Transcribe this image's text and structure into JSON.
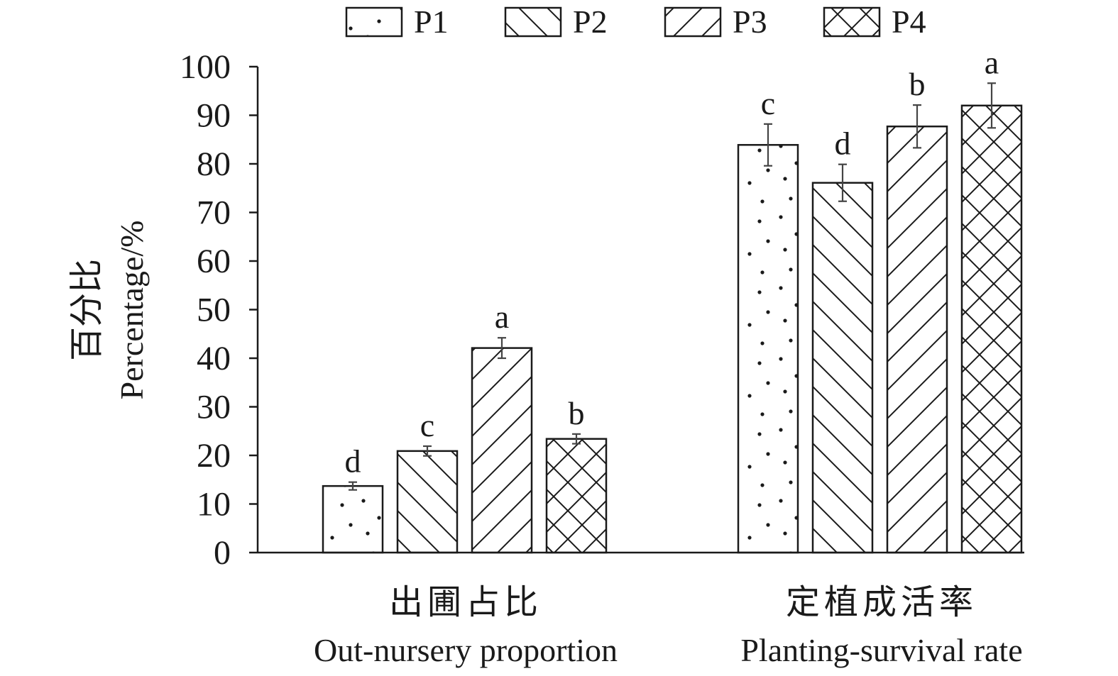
{
  "chart_data": {
    "type": "bar",
    "title": "",
    "ylabel_zh": "百分比",
    "ylabel": "Percentage/%",
    "ylim": [
      0,
      100
    ],
    "yticks": [
      0,
      10,
      20,
      30,
      40,
      50,
      60,
      70,
      80,
      90,
      100
    ],
    "grid": false,
    "legend_position": "top",
    "categories": [
      {
        "label_zh": "出圃占比",
        "label_en": "Out-nursery proportion"
      },
      {
        "label_zh": "定植成活率",
        "label_en": "Planting-survival rate"
      }
    ],
    "series": [
      {
        "name": "P1",
        "pattern": "dots",
        "values": [
          13.7,
          83.9
        ],
        "errors": [
          0.8,
          4.3
        ],
        "letters": [
          "d",
          "c"
        ]
      },
      {
        "name": "P2",
        "pattern": "backslash-hatch",
        "values": [
          20.9,
          76.1
        ],
        "errors": [
          1.0,
          3.8
        ],
        "letters": [
          "c",
          "d"
        ]
      },
      {
        "name": "P3",
        "pattern": "slash-hatch",
        "values": [
          42.1,
          87.7
        ],
        "errors": [
          2.1,
          4.4
        ],
        "letters": [
          "a",
          "b"
        ]
      },
      {
        "name": "P4",
        "pattern": "crosshatch",
        "values": [
          23.4,
          92.0
        ],
        "errors": [
          1.0,
          4.6
        ],
        "letters": [
          "b",
          "a"
        ]
      }
    ]
  }
}
